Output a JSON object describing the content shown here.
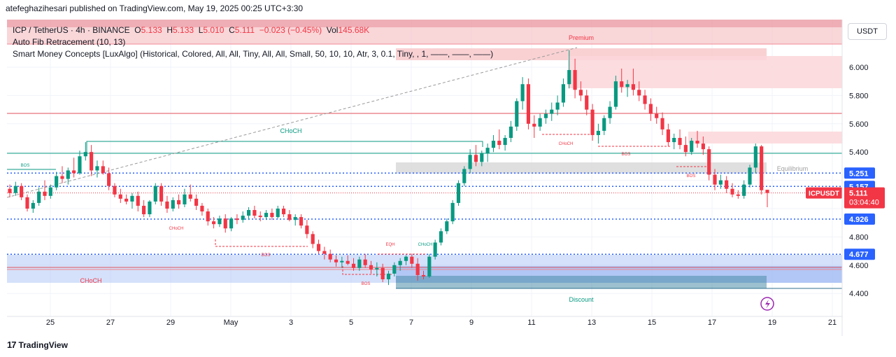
{
  "header": {
    "attribution": "atefeghazihesari published on TradingView.com, May 19, 2025 00:25 UTC+3:30"
  },
  "footer": {
    "brand": "TradingView"
  },
  "legend": {
    "symbol": "ICP / TetherUS · 4h · BINANCE",
    "o_label": "O",
    "o_val": "5.133",
    "h_label": "H",
    "h_val": "5.133",
    "l_label": "L",
    "l_val": "5.010",
    "c_label": "C",
    "c_val": "5.111",
    "change": "−0.023 (−0.45%)",
    "vol_label": "Vol",
    "vol_val": "145.68K",
    "indicator1": "Auto Fib Retracement (10, 13)",
    "indicator2": "Smart Money Concepts [LuxAlgo] (Historical, Colored, All, All, Tiny, All, All, Small, 50, 10, 10, Atr, 3, 0.1, Tiny, , 1, ——, ——, ——)"
  },
  "currency_button": "USDT",
  "colors": {
    "up": "#089981",
    "down": "#f23645",
    "premium_zone": "#f7c5c8",
    "discount_zone": "#b3c8f5",
    "equilibrium": "#d9d9d9",
    "dotted_blue": "#2962ff"
  },
  "chart_data": {
    "type": "candlestick",
    "symbol": "ICPUSDT",
    "timeframe": "4h",
    "x_tick_labels": [
      "25",
      "27",
      "29",
      "May",
      "3",
      "5",
      "7",
      "9",
      "11",
      "13",
      "15",
      "17",
      "19",
      "21"
    ],
    "y_ticks": [
      "6.000",
      "5.800",
      "5.600",
      "5.400",
      "4.800",
      "4.600",
      "4.400"
    ],
    "ylim": [
      4.33,
      6.28
    ],
    "price_labels": [
      {
        "text": "5.251",
        "value": 5.251,
        "color": "#2962ff"
      },
      {
        "text": "5.157",
        "value": 5.157,
        "color": "#2962ff"
      },
      {
        "text": "5.111",
        "value": 5.111,
        "color": "#f23645"
      },
      {
        "text": "4.926",
        "value": 4.926,
        "color": "#2962ff"
      },
      {
        "text": "4.677",
        "value": 4.677,
        "color": "#2962ff"
      }
    ],
    "current_symbol_tag": "ICPUSDT",
    "countdown": "03:04:40",
    "zone_labels": {
      "premium": "Premium",
      "discount": "Discount",
      "equilibrium": "Equilibrium"
    },
    "structure_labels": [
      {
        "text": "CHoCH",
        "color": "#089981",
        "size": "small"
      },
      {
        "text": "BOS",
        "color": "#089981",
        "size": "tiny"
      },
      {
        "text": "CHoCH",
        "color": "#f23645",
        "size": "tiny"
      },
      {
        "text": "BOS",
        "color": "#f23645",
        "size": "tiny"
      },
      {
        "text": "BOS",
        "color": "#f23645",
        "size": "tiny"
      },
      {
        "text": "EQH",
        "color": "#f23645",
        "size": "tiny"
      },
      {
        "text": "CHoCH",
        "color": "#089981",
        "size": "tiny"
      },
      {
        "text": "CHoCH",
        "color": "#f23645",
        "size": "tiny"
      },
      {
        "text": "BOS",
        "color": "#f23645",
        "size": "tiny"
      },
      {
        "text": "BOS",
        "color": "#f23645",
        "size": "tiny"
      },
      {
        "text": "CHoCH",
        "color": "#f23645",
        "size": "small"
      }
    ],
    "candles": [
      [
        5.14,
        5.17,
        5.08,
        5.11
      ],
      [
        5.11,
        5.19,
        5.09,
        5.16
      ],
      [
        5.16,
        5.18,
        5.06,
        5.08
      ],
      [
        5.08,
        5.1,
        4.98,
        5.0
      ],
      [
        5.0,
        5.06,
        4.97,
        5.04
      ],
      [
        5.04,
        5.15,
        5.02,
        5.12
      ],
      [
        5.12,
        5.2,
        5.06,
        5.09
      ],
      [
        5.09,
        5.17,
        5.07,
        5.15
      ],
      [
        5.15,
        5.26,
        5.13,
        5.23
      ],
      [
        5.23,
        5.3,
        5.18,
        5.21
      ],
      [
        5.21,
        5.29,
        5.17,
        5.27
      ],
      [
        5.27,
        5.36,
        5.22,
        5.25
      ],
      [
        5.25,
        5.41,
        5.24,
        5.37
      ],
      [
        5.37,
        5.47,
        5.34,
        5.4
      ],
      [
        5.4,
        5.45,
        5.23,
        5.27
      ],
      [
        5.27,
        5.34,
        5.22,
        5.3
      ],
      [
        5.3,
        5.34,
        5.24,
        5.25
      ],
      [
        5.25,
        5.29,
        5.13,
        5.16
      ],
      [
        5.16,
        5.18,
        5.08,
        5.1
      ],
      [
        5.1,
        5.14,
        5.04,
        5.07
      ],
      [
        5.07,
        5.1,
        5.03,
        5.05
      ],
      [
        5.05,
        5.11,
        5.0,
        5.09
      ],
      [
        5.09,
        5.12,
        4.98,
        5.02
      ],
      [
        5.02,
        5.06,
        4.94,
        4.96
      ],
      [
        4.96,
        5.06,
        4.94,
        5.05
      ],
      [
        5.05,
        5.18,
        5.03,
        5.16
      ],
      [
        5.16,
        5.18,
        5.02,
        5.05
      ],
      [
        5.05,
        5.09,
        4.97,
        5.0
      ],
      [
        5.0,
        5.08,
        4.98,
        5.06
      ],
      [
        5.06,
        5.1,
        5.0,
        5.03
      ],
      [
        5.03,
        5.14,
        5.01,
        5.1
      ],
      [
        5.1,
        5.17,
        5.05,
        5.07
      ],
      [
        5.07,
        5.1,
        4.99,
        5.02
      ],
      [
        5.02,
        5.04,
        4.95,
        4.98
      ],
      [
        4.98,
        5.0,
        4.88,
        4.91
      ],
      [
        4.91,
        4.94,
        4.86,
        4.89
      ],
      [
        4.89,
        4.95,
        4.87,
        4.93
      ],
      [
        4.93,
        4.96,
        4.83,
        4.86
      ],
      [
        4.86,
        4.94,
        4.84,
        4.93
      ],
      [
        4.93,
        4.96,
        4.89,
        4.92
      ],
      [
        4.92,
        4.98,
        4.9,
        4.95
      ],
      [
        4.95,
        5.01,
        4.92,
        4.99
      ],
      [
        4.99,
        5.02,
        4.93,
        4.95
      ],
      [
        4.95,
        4.98,
        4.91,
        4.94
      ],
      [
        4.94,
        4.99,
        4.92,
        4.97
      ],
      [
        4.97,
        5.0,
        4.92,
        4.94
      ],
      [
        4.94,
        5.02,
        4.93,
        5.0
      ],
      [
        5.0,
        5.02,
        4.94,
        4.96
      ],
      [
        4.96,
        4.99,
        4.91,
        4.92
      ],
      [
        4.92,
        4.96,
        4.88,
        4.94
      ],
      [
        4.94,
        4.96,
        4.86,
        4.88
      ],
      [
        4.88,
        4.92,
        4.79,
        4.82
      ],
      [
        4.82,
        4.84,
        4.72,
        4.75
      ],
      [
        4.75,
        4.78,
        4.68,
        4.7
      ],
      [
        4.7,
        4.73,
        4.64,
        4.68
      ],
      [
        4.68,
        4.71,
        4.62,
        4.64
      ],
      [
        4.64,
        4.67,
        4.59,
        4.62
      ],
      [
        4.62,
        4.66,
        4.58,
        4.63
      ],
      [
        4.63,
        4.67,
        4.6,
        4.61
      ],
      [
        4.61,
        4.65,
        4.56,
        4.58
      ],
      [
        4.58,
        4.66,
        4.56,
        4.64
      ],
      [
        4.64,
        4.68,
        4.58,
        4.6
      ],
      [
        4.6,
        4.63,
        4.54,
        4.57
      ],
      [
        4.57,
        4.62,
        4.52,
        4.58
      ],
      [
        4.58,
        4.61,
        4.48,
        4.5
      ],
      [
        4.5,
        4.56,
        4.46,
        4.54
      ],
      [
        4.54,
        4.62,
        4.52,
        4.6
      ],
      [
        4.6,
        4.65,
        4.56,
        4.63
      ],
      [
        4.63,
        4.67,
        4.6,
        4.66
      ],
      [
        4.66,
        4.68,
        4.58,
        4.61
      ],
      [
        4.61,
        4.65,
        4.49,
        4.53
      ],
      [
        4.53,
        4.56,
        4.5,
        4.52
      ],
      [
        4.52,
        4.68,
        4.51,
        4.66
      ],
      [
        4.66,
        4.78,
        4.64,
        4.76
      ],
      [
        4.76,
        4.86,
        4.74,
        4.84
      ],
      [
        4.84,
        4.93,
        4.82,
        4.91
      ],
      [
        4.91,
        5.06,
        4.89,
        5.04
      ],
      [
        5.04,
        5.2,
        5.02,
        5.18
      ],
      [
        5.18,
        5.3,
        5.16,
        5.28
      ],
      [
        5.28,
        5.42,
        5.25,
        5.38
      ],
      [
        5.38,
        5.45,
        5.3,
        5.33
      ],
      [
        5.33,
        5.41,
        5.3,
        5.39
      ],
      [
        5.39,
        5.46,
        5.33,
        5.43
      ],
      [
        5.43,
        5.52,
        5.4,
        5.48
      ],
      [
        5.48,
        5.56,
        5.42,
        5.45
      ],
      [
        5.45,
        5.52,
        5.41,
        5.5
      ],
      [
        5.5,
        5.62,
        5.47,
        5.58
      ],
      [
        5.58,
        5.78,
        5.55,
        5.76
      ],
      [
        5.76,
        5.93,
        5.7,
        5.88
      ],
      [
        5.88,
        5.92,
        5.56,
        5.6
      ],
      [
        5.6,
        5.66,
        5.5,
        5.58
      ],
      [
        5.58,
        5.67,
        5.55,
        5.64
      ],
      [
        5.64,
        5.7,
        5.6,
        5.67
      ],
      [
        5.67,
        5.75,
        5.62,
        5.7
      ],
      [
        5.7,
        5.8,
        5.66,
        5.75
      ],
      [
        5.75,
        5.92,
        5.72,
        5.88
      ],
      [
        5.88,
        6.12,
        5.85,
        5.98
      ],
      [
        5.98,
        6.06,
        5.78,
        5.84
      ],
      [
        5.84,
        5.9,
        5.76,
        5.8
      ],
      [
        5.8,
        5.84,
        5.66,
        5.7
      ],
      [
        5.7,
        5.74,
        5.48,
        5.52
      ],
      [
        5.52,
        5.6,
        5.46,
        5.55
      ],
      [
        5.55,
        5.66,
        5.52,
        5.64
      ],
      [
        5.64,
        5.76,
        5.6,
        5.72
      ],
      [
        5.72,
        5.94,
        5.7,
        5.9
      ],
      [
        5.9,
        5.99,
        5.82,
        5.86
      ],
      [
        5.86,
        5.91,
        5.79,
        5.88
      ],
      [
        5.88,
        5.99,
        5.8,
        5.84
      ],
      [
        5.84,
        5.9,
        5.76,
        5.8
      ],
      [
        5.8,
        5.84,
        5.7,
        5.74
      ],
      [
        5.74,
        5.78,
        5.62,
        5.67
      ],
      [
        5.67,
        5.72,
        5.6,
        5.64
      ],
      [
        5.64,
        5.68,
        5.52,
        5.56
      ],
      [
        5.56,
        5.6,
        5.44,
        5.47
      ],
      [
        5.47,
        5.53,
        5.42,
        5.5
      ],
      [
        5.5,
        5.56,
        5.42,
        5.45
      ],
      [
        5.45,
        5.51,
        5.37,
        5.4
      ],
      [
        5.4,
        5.5,
        5.38,
        5.48
      ],
      [
        5.48,
        5.55,
        5.43,
        5.46
      ],
      [
        5.46,
        5.51,
        5.38,
        5.42
      ],
      [
        5.42,
        5.44,
        5.2,
        5.24
      ],
      [
        5.24,
        5.28,
        5.13,
        5.17
      ],
      [
        5.17,
        5.24,
        5.14,
        5.2
      ],
      [
        5.2,
        5.23,
        5.11,
        5.14
      ],
      [
        5.14,
        5.18,
        5.08,
        5.1
      ],
      [
        5.1,
        5.13,
        5.07,
        5.09
      ],
      [
        5.09,
        5.2,
        5.07,
        5.17
      ],
      [
        5.17,
        5.31,
        5.15,
        5.29
      ],
      [
        5.29,
        5.46,
        5.25,
        5.44
      ],
      [
        5.44,
        5.45,
        5.1,
        5.13
      ],
      [
        5.133,
        5.133,
        5.01,
        5.111
      ]
    ]
  }
}
